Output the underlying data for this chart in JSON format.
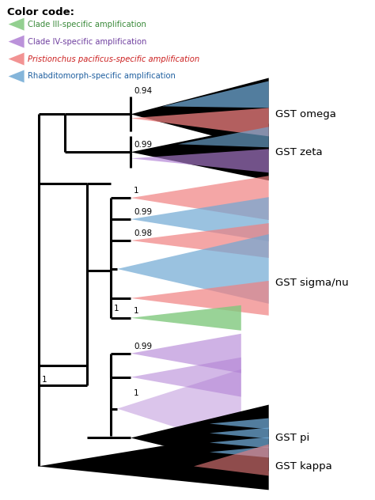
{
  "background_color": "#ffffff",
  "legend_title": "Color code:",
  "legend_items": [
    {
      "label": "Clade III-specific amplification",
      "color": "#80c87d",
      "text_color": "#3a8a3a"
    },
    {
      "label": "Clade IV-specific amplification",
      "color": "#b07fd4",
      "text_color": "#7040a0"
    },
    {
      "label": "Pristionchus pacificus-specific amplification",
      "color": "#f08080",
      "text_color": "#cc2020",
      "italic": true
    },
    {
      "label": "Rhabditomorph-specific amplification",
      "color": "#6fa8d4",
      "text_color": "#2060a0"
    }
  ],
  "fig_width": 4.74,
  "fig_height": 6.32,
  "dpi": 100,
  "line_width": 2.2,
  "colors": {
    "black": "#000000",
    "blue": "#6fa8d4",
    "pink": "#f08080",
    "green": "#80c87d",
    "purple": "#b07fd4"
  }
}
